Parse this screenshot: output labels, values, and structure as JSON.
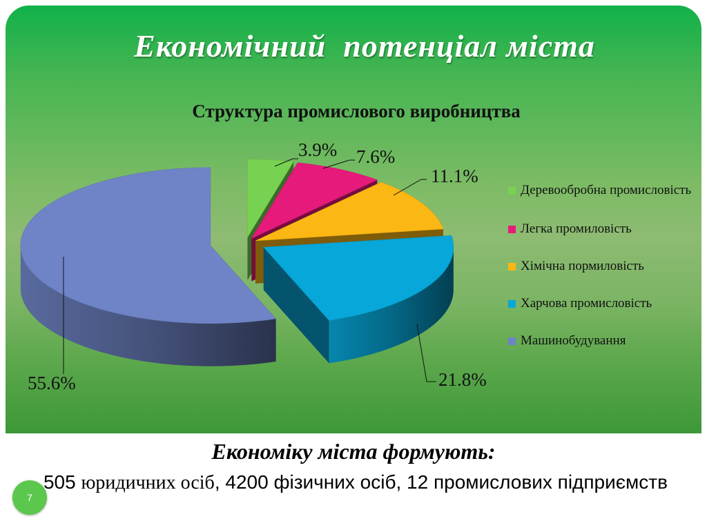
{
  "slide": {
    "title": "Економічний  потенціал міста",
    "page_number": "7"
  },
  "chart_data": {
    "type": "pie",
    "title": "Структура промислового виробництва",
    "categories": [
      "Деревообробна промисловість",
      "Легка промиловість",
      "Хімічна пормиловість",
      "Харчова промисловість",
      "Машинобудування"
    ],
    "values": [
      3.9,
      7.6,
      11.1,
      21.8,
      55.6
    ],
    "labels": [
      "3.9%",
      "7.6%",
      "11.1%",
      "21.8%",
      "55.6%"
    ],
    "colors": [
      "#77d251",
      "#e51a7a",
      "#fbb713",
      "#07a7d9",
      "#6f84c6"
    ],
    "legend_position": "right",
    "exploded": true,
    "three_d": true
  },
  "footer": {
    "heading": "Економіку міста формують:",
    "count_legal": "505",
    "legal_entities": "юридичних осіб",
    "rest": ", 4200 фізичних осіб, 12 промислових підприємств"
  }
}
